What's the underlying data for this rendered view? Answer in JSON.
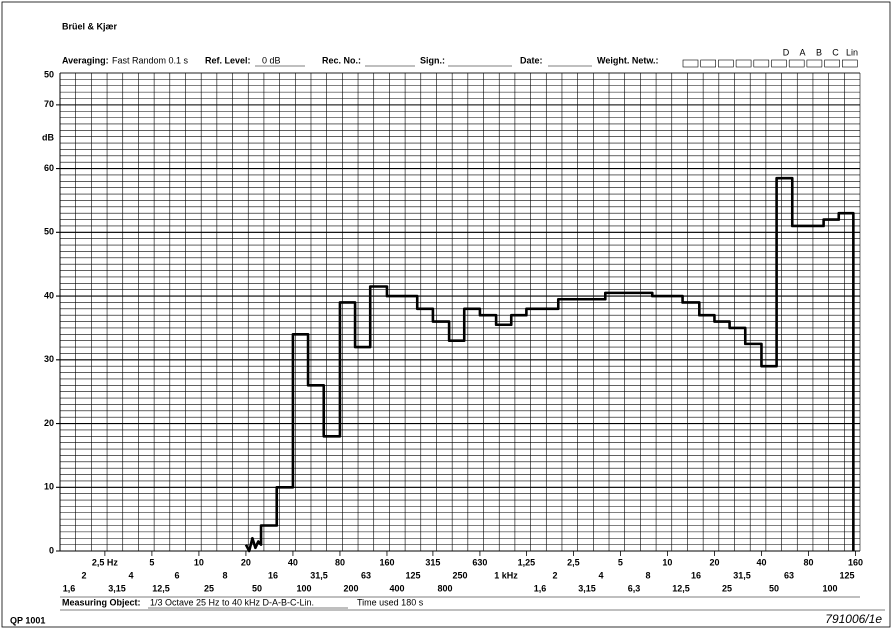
{
  "header": {
    "brand": "Brüel & Kjær",
    "averaging_label": "Averaging:",
    "averaging": "Fast Random 0.1 s",
    "ref_level_label": "Ref. Level:",
    "ref_level": "0 dB",
    "rec_no_label": "Rec. No.:",
    "sign_label": "Sign.:",
    "date_label": "Date:",
    "weight_label": "Weight. Netw.:",
    "weight_options": [
      "D",
      "A",
      "B",
      "C",
      "Lin"
    ]
  },
  "chart_data": {
    "type": "line",
    "xscale": "log",
    "range_label": "50",
    "y_label": "dB",
    "xlim": [
      1.29,
      171000
    ],
    "ylim": [
      0,
      75
    ],
    "xticks": [
      {
        "value": 2.5,
        "label": "2,5 Hz"
      },
      5,
      10,
      20,
      40,
      80,
      160,
      315,
      630,
      {
        "value": 1250,
        "label": "1,25"
      },
      {
        "value": 2500,
        "label": "2,5"
      },
      {
        "value": 5000,
        "label": "5"
      },
      {
        "value": 10000,
        "label": "10"
      },
      {
        "value": 20000,
        "label": "20"
      },
      {
        "value": 40000,
        "label": "40"
      },
      {
        "value": 80000,
        "label": "80"
      },
      {
        "value": 160000,
        "label": "160"
      }
    ],
    "scale_row2": [
      "2",
      "4",
      "6",
      "8",
      "16",
      "31,5",
      "63",
      "125",
      "250",
      "1 kHz",
      "2",
      "4",
      "8",
      "16",
      "31,5",
      "63",
      "125"
    ],
    "scale_row3": [
      "1,6",
      "3,15",
      "12,5",
      "25",
      "50",
      "100",
      "200",
      "400",
      "800",
      "1,6",
      "3,15",
      "6,3",
      "12,5",
      "25",
      "50",
      "100"
    ],
    "yticks": [
      0,
      10,
      20,
      30,
      40,
      50,
      60,
      70
    ],
    "grid": true,
    "series": [
      {
        "color": "#000000",
        "x": [
          20,
          21,
          22,
          23,
          24,
          25,
          25,
          31.5,
          31.5,
          40,
          40,
          50,
          50,
          63,
          63,
          80,
          80,
          100,
          100,
          125,
          125,
          160,
          160,
          250,
          250,
          315,
          315,
          400,
          400,
          500,
          500,
          630,
          630,
          800,
          800,
          1000,
          1000,
          1250,
          1250,
          2000,
          2000,
          4000,
          4000,
          8000,
          8000,
          12500,
          12500,
          16000,
          16000,
          20000,
          20000,
          25000,
          25000,
          31500,
          31500,
          40000,
          40000,
          50000,
          50000,
          63000,
          63000,
          100000,
          100000,
          125000,
          125000,
          155000,
          155000
        ],
        "values": [
          1,
          0,
          2,
          0.5,
          1.5,
          1,
          4,
          4,
          10,
          10,
          34,
          34,
          26,
          26,
          18,
          18,
          39,
          39,
          32,
          32,
          41.5,
          41.5,
          40,
          40,
          38,
          38,
          36,
          36,
          33,
          33,
          38,
          38,
          37,
          37,
          35.5,
          35.5,
          37,
          37,
          38,
          38,
          39.5,
          39.5,
          40.5,
          40.5,
          40,
          40,
          39,
          39,
          37,
          37,
          36,
          36,
          35,
          35,
          32.5,
          32.5,
          29,
          29,
          58.5,
          58.5,
          51,
          51,
          52,
          52,
          53,
          53,
          0
        ]
      }
    ]
  },
  "footer": {
    "measuring_label": "Measuring Object:",
    "measuring_object": "1/3 Octave 25 Hz to 40 kHz D-A-B-C-Lin.",
    "time_used": "Time used 180 s",
    "form_code": "QP 1001",
    "chart_code": "791006/1e"
  }
}
